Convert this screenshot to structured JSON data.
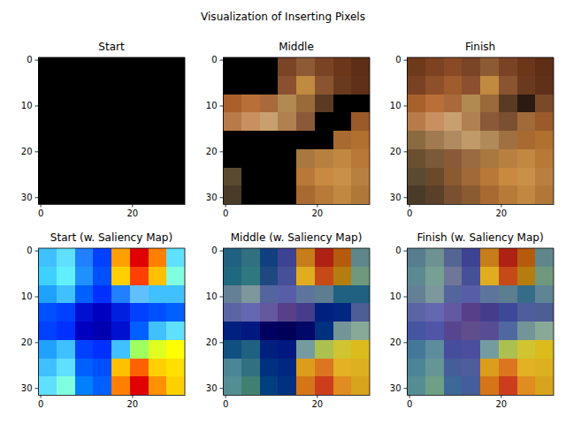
{
  "title": "Visualization of Inserting Pixels",
  "chart_data": [
    {
      "type": "image",
      "title": "Start",
      "xlim": [
        -0.5,
        31.5
      ],
      "ylim": [
        31.5,
        -0.5
      ],
      "xticks": [
        0,
        20
      ],
      "yticks": [
        0,
        10,
        20,
        30
      ],
      "colors": [
        [
          "#000000",
          "#000000",
          "#000000",
          "#000000",
          "#000000",
          "#000000",
          "#000000",
          "#000000"
        ],
        [
          "#000000",
          "#000000",
          "#000000",
          "#000000",
          "#000000",
          "#000000",
          "#000000",
          "#000000"
        ],
        [
          "#000000",
          "#000000",
          "#000000",
          "#000000",
          "#000000",
          "#000000",
          "#000000",
          "#000000"
        ],
        [
          "#000000",
          "#000000",
          "#000000",
          "#000000",
          "#000000",
          "#000000",
          "#000000",
          "#000000"
        ],
        [
          "#000000",
          "#000000",
          "#000000",
          "#000000",
          "#000000",
          "#000000",
          "#000000",
          "#000000"
        ],
        [
          "#000000",
          "#000000",
          "#000000",
          "#000000",
          "#000000",
          "#000000",
          "#000000",
          "#000000"
        ],
        [
          "#000000",
          "#000000",
          "#000000",
          "#000000",
          "#000000",
          "#000000",
          "#000000",
          "#000000"
        ],
        [
          "#000000",
          "#000000",
          "#000000",
          "#000000",
          "#000000",
          "#000000",
          "#000000",
          "#000000"
        ]
      ]
    },
    {
      "type": "image",
      "title": "Middle",
      "xlim": [
        -0.5,
        31.5
      ],
      "ylim": [
        31.5,
        -0.5
      ],
      "xticks": [
        0,
        20
      ],
      "yticks": [
        0,
        10,
        20,
        30
      ],
      "colors": [
        [
          "#000000",
          "#000000",
          "#000000",
          "#7a4426",
          "#8c5a34",
          "#7a4424",
          "#6c361a",
          "#5e2e16"
        ],
        [
          "#000000",
          "#000000",
          "#000000",
          "#8a5030",
          "#c08a40",
          "#8a5430",
          "#6a3a1e",
          "#603018"
        ],
        [
          "#a8602c",
          "#b87038",
          "#a86a3a",
          "#b08a50",
          "#9a6a3a",
          "#5a3a22",
          "#000000",
          "#000000"
        ],
        [
          "#b87a48",
          "#c89060",
          "#c8a070",
          "#b08050",
          "#8a5a38",
          "#000000",
          "#000000",
          "#9a5a2a"
        ],
        [
          "#000000",
          "#000000",
          "#000000",
          "#000000",
          "#000000",
          "#000000",
          "#a86a30",
          "#b07030"
        ],
        [
          "#000000",
          "#000000",
          "#000000",
          "#000000",
          "#a87840",
          "#b88040",
          "#c08840",
          "#b87838"
        ],
        [
          "#5a4a30",
          "#000000",
          "#000000",
          "#000000",
          "#b87838",
          "#c88a40",
          "#c89048",
          "#b88040"
        ],
        [
          "#4a3a28",
          "#000000",
          "#000000",
          "#000000",
          "#a86a30",
          "#b87a38",
          "#c08840",
          "#b07838"
        ]
      ]
    },
    {
      "type": "image",
      "title": "Finish",
      "xlim": [
        -0.5,
        31.5
      ],
      "ylim": [
        31.5,
        -0.5
      ],
      "xticks": [
        0,
        20
      ],
      "yticks": [
        0,
        10,
        20,
        30
      ],
      "colors": [
        [
          "#6e3a1c",
          "#7c4222",
          "#8a4a26",
          "#7a4426",
          "#8c5a34",
          "#7a4424",
          "#6c361a",
          "#5e2e16"
        ],
        [
          "#7a4222",
          "#8e5028",
          "#a05c2e",
          "#8a5030",
          "#c08a40",
          "#8a5430",
          "#6a3a1e",
          "#603018"
        ],
        [
          "#a8602c",
          "#b87038",
          "#a86a3a",
          "#b08a50",
          "#9a6a3a",
          "#5a3a22",
          "#2a1a12",
          "#7a4a28"
        ],
        [
          "#b87a48",
          "#c89060",
          "#c8a070",
          "#b08050",
          "#8a5a38",
          "#7a5030",
          "#a06a3a",
          "#9a5a2a"
        ],
        [
          "#8a6a40",
          "#a07a50",
          "#b08a60",
          "#c09a68",
          "#b08a58",
          "#a07040",
          "#a86a30",
          "#b07030"
        ],
        [
          "#6a5030",
          "#7a5a38",
          "#8a5a38",
          "#9a6a40",
          "#a87840",
          "#b88040",
          "#c08840",
          "#b87838"
        ],
        [
          "#5a4a30",
          "#6a4a2a",
          "#8a5a30",
          "#a06a38",
          "#b87838",
          "#c88a40",
          "#c89048",
          "#b88040"
        ],
        [
          "#4a3a28",
          "#5a4028",
          "#7a5030",
          "#8a5a30",
          "#a86a30",
          "#b87a38",
          "#c08840",
          "#b07838"
        ]
      ]
    },
    {
      "type": "image",
      "title": "Start (w. Saliency Map)",
      "xlim": [
        -0.5,
        31.5
      ],
      "ylim": [
        31.5,
        -0.5
      ],
      "xticks": [
        0,
        20
      ],
      "yticks": [
        0,
        10,
        20,
        30
      ],
      "colors": [
        [
          "#40c0ff",
          "#60e0ff",
          "#2080ff",
          "#0040ff",
          "#ffa000",
          "#e00000",
          "#ff8000",
          "#60e0ff"
        ],
        [
          "#40d0ff",
          "#60f0ff",
          "#2090ff",
          "#0050ff",
          "#ffd000",
          "#ff4000",
          "#ffc000",
          "#80ffe0"
        ],
        [
          "#20a0ff",
          "#40c0ff",
          "#0060ff",
          "#0030ff",
          "#2080ff",
          "#60c0ff",
          "#40c0ff",
          "#40c0ff"
        ],
        [
          "#0050ff",
          "#0040ff",
          "#0010d0",
          "#0000c0",
          "#0020e0",
          "#0040ff",
          "#0050ff",
          "#0060ff"
        ],
        [
          "#0040ff",
          "#0030ff",
          "#0000c0",
          "#0000b0",
          "#0010d0",
          "#0060ff",
          "#40c0ff",
          "#60e0ff"
        ],
        [
          "#20a0ff",
          "#40c0ff",
          "#0040ff",
          "#0030ff",
          "#40c0ff",
          "#a0ff60",
          "#e0ff20",
          "#ffff00"
        ],
        [
          "#40c0ff",
          "#60e0ff",
          "#0060ff",
          "#0050ff",
          "#ffc000",
          "#ff6000",
          "#ffd000",
          "#ffe000"
        ],
        [
          "#60e0ff",
          "#80ffe0",
          "#0080ff",
          "#0060ff",
          "#ff8000",
          "#e00000",
          "#ff9000",
          "#ffd000"
        ]
      ]
    },
    {
      "type": "image",
      "title": "Middle (w. Saliency Map)",
      "xlim": [
        -0.5,
        31.5
      ],
      "ylim": [
        31.5,
        -0.5
      ],
      "xticks": [
        0,
        20
      ],
      "yticks": [
        0,
        10,
        20,
        30
      ],
      "colors": [
        [
          "#206080",
          "#307080",
          "#104080",
          "#3d4293",
          "#c67d1a",
          "#ad2212",
          "#b65b0d",
          "#5f878b"
        ],
        [
          "#206880",
          "#307880",
          "#204880",
          "#455098",
          "#e0ad20",
          "#c54a18",
          "#b57d0f",
          "#70987c"
        ],
        [
          "#648096",
          "#7c989c",
          "#54659d",
          "#585da8",
          "#5d759d",
          "#5d7d91",
          "#206080",
          "#206080"
        ],
        [
          "#5c65a4",
          "#6468b0",
          "#6458a0",
          "#584088",
          "#453d8c",
          "#002080",
          "#002880",
          "#4d5d95"
        ],
        [
          "#002080",
          "#001880",
          "#000060",
          "#000058",
          "#000868",
          "#003080",
          "#749598",
          "#88a898"
        ],
        [
          "#105080",
          "#206080",
          "#002080",
          "#001880",
          "#749ca0",
          "#acc050",
          "#d0c430",
          "#dcbc1c"
        ],
        [
          "#4d8598",
          "#307080",
          "#003080",
          "#002880",
          "#dc9c1c",
          "#dc7520",
          "#e4b024",
          "#dcb020"
        ],
        [
          "#558d94",
          "#408070",
          "#004080",
          "#003080",
          "#d47518",
          "#cc3d1c",
          "#e08c20",
          "#d8a41c"
        ]
      ]
    },
    {
      "type": "image",
      "title": "Finish (w. Saliency Map)",
      "xlim": [
        -0.5,
        31.5
      ],
      "ylim": [
        31.5,
        -0.5
      ],
      "xticks": [
        0,
        20
      ],
      "yticks": [
        0,
        10,
        20,
        30
      ],
      "colors": [
        [
          "#577d8e",
          "#6e9191",
          "#556593",
          "#3d4293",
          "#c67d1a",
          "#ad2212",
          "#b65b0d",
          "#5f878b"
        ],
        [
          "#5d8991",
          "#77a094",
          "#707697",
          "#455098",
          "#e0ad20",
          "#c54a18",
          "#b57d0f",
          "#70987c"
        ],
        [
          "#648096",
          "#7c989c",
          "#54659d",
          "#585da8",
          "#5d759d",
          "#5d7d91",
          "#356d89",
          "#5d8594"
        ],
        [
          "#5c65a4",
          "#6468b0",
          "#6458a0",
          "#584088",
          "#453d8c",
          "#3d4898",
          "#505d9d",
          "#4d5d95"
        ],
        [
          "#4555a0",
          "#5055a8",
          "#584590",
          "#604d8c",
          "#584d94",
          "#5068a0",
          "#749598",
          "#88a898"
        ],
        [
          "#457898",
          "#5d8d9c",
          "#454d9c",
          "#4d4da0",
          "#749ca0",
          "#acc050",
          "#d0c430",
          "#dcbc1c"
        ],
        [
          "#4d8598",
          "#659595",
          "#455d98",
          "#505d9c",
          "#dc9c1c",
          "#dc7520",
          "#e4b024",
          "#dcb020"
        ],
        [
          "#558d94",
          "#6da084",
          "#3d6898",
          "#455d98",
          "#d47518",
          "#cc3d1c",
          "#e08c20",
          "#d8a41c"
        ]
      ]
    }
  ]
}
